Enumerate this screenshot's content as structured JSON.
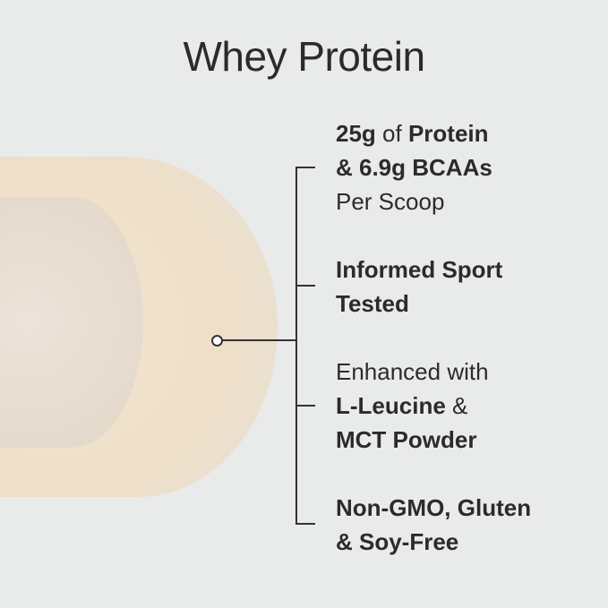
{
  "title": "Whey Protein",
  "features": [
    {
      "parts": [
        "25g",
        "of",
        "Protein",
        "& 6.9g BCAAs",
        "Per Scoop"
      ]
    },
    {
      "parts": [
        "Informed Sport",
        "Tested"
      ]
    },
    {
      "parts": [
        "Enhanced with",
        "L-Leucine",
        "&",
        "MCT Powder"
      ]
    },
    {
      "parts": [
        "Non-GMO, Gluten",
        "& Soy-Free"
      ]
    }
  ]
}
